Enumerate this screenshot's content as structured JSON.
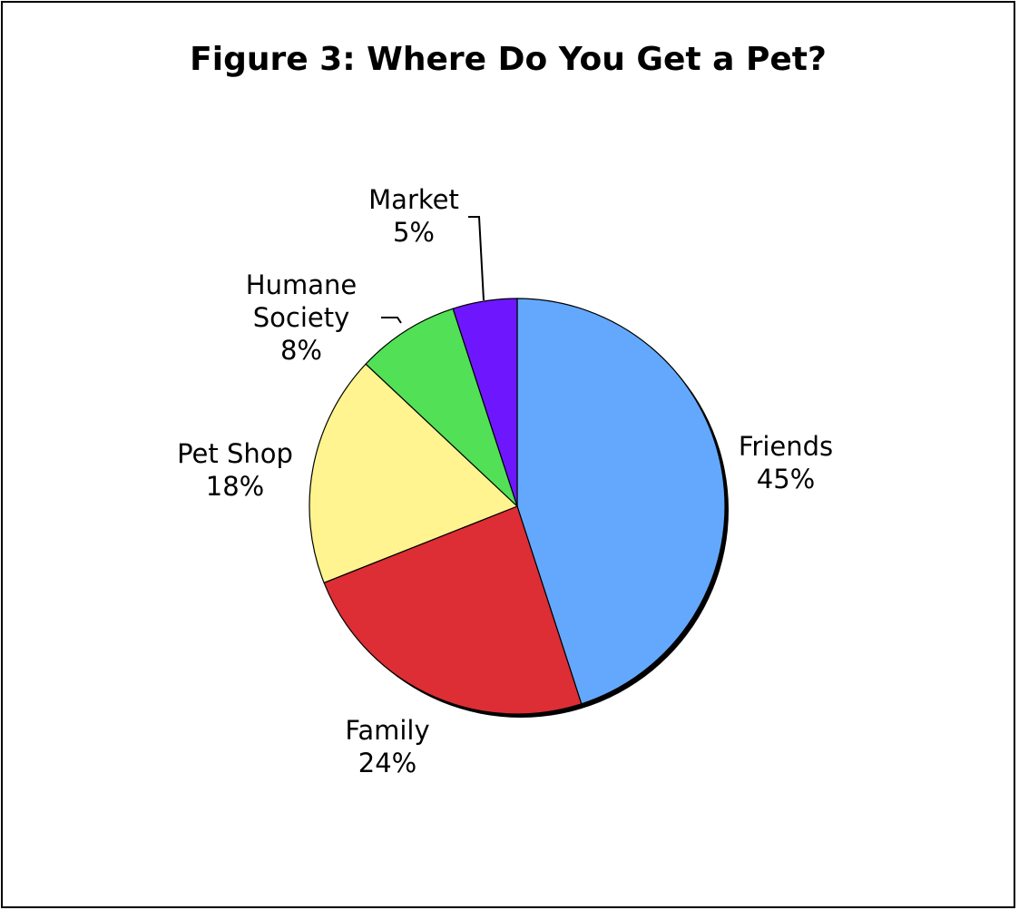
{
  "chart_data": {
    "type": "pie",
    "title": "Figure 3: Where Do You Get a Pet?",
    "slices": [
      {
        "label": "Friends",
        "value": 45,
        "display": "45%",
        "color": "#63a8fd"
      },
      {
        "label": "Family",
        "value": 24,
        "display": "24%",
        "color": "#dc2e34"
      },
      {
        "label": "Pet Shop",
        "value": 18,
        "display": "18%",
        "color": "#fff48f"
      },
      {
        "label": [
          "Humane",
          "Society"
        ],
        "value": 8,
        "display": "8%",
        "color": "#52e057"
      },
      {
        "label": "Market",
        "value": 5,
        "display": "5%",
        "color": "#6e17ff"
      }
    ],
    "start": "12 o'clock",
    "direction": "clockwise",
    "legend": "none",
    "data_labels": "outside"
  }
}
